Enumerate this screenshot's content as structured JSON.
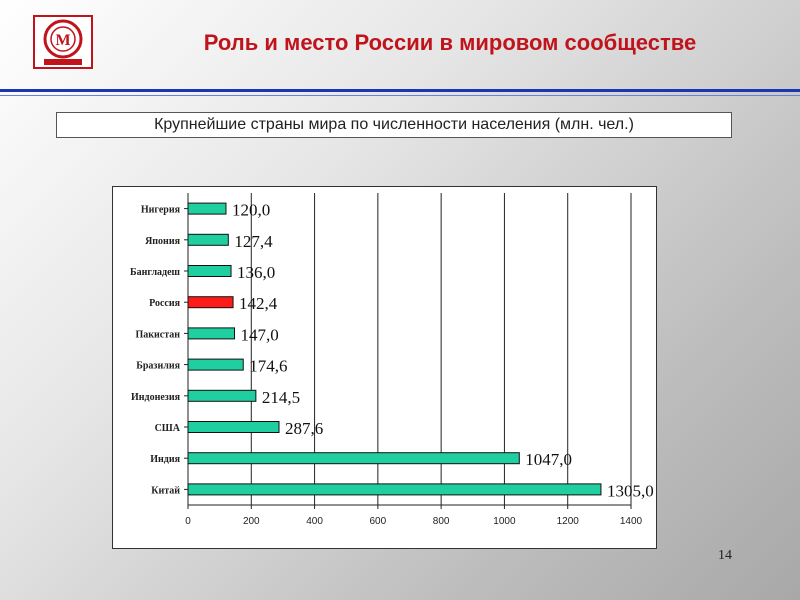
{
  "header": {
    "title": "Роль и место России в мировом сообществе",
    "logo_text": "М"
  },
  "subtitle": "Крупнейшие страны мира по численности населения (млн. чел.)",
  "page_number": "14",
  "colors": {
    "title": "#c0141c",
    "bar": "#1fcf9f",
    "bar_highlight": "#ff1a1a",
    "rule": "#1e35b0"
  },
  "chart_data": {
    "type": "bar",
    "orientation": "horizontal",
    "title": "",
    "xlabel": "",
    "ylabel": "",
    "categories": [
      "Нигерия",
      "Япония",
      "Бангладеш",
      "Россия",
      "Пакистан",
      "Бразилия",
      "Индонезия",
      "США",
      "Индия",
      "Китай"
    ],
    "values": [
      120.0,
      127.4,
      136.0,
      142.4,
      147.0,
      174.6,
      214.5,
      287.6,
      1047.0,
      1305.0
    ],
    "value_labels": [
      "120,0",
      "127,4",
      "136,0",
      "142,4",
      "147,0",
      "174,6",
      "214,5",
      "287,6",
      "1047,0",
      "1305,0"
    ],
    "highlight_category": "Россия",
    "xlim": [
      0,
      1400
    ],
    "xticks": [
      0,
      200,
      400,
      600,
      800,
      1000,
      1200,
      1400
    ],
    "grid": "vertical lines"
  }
}
